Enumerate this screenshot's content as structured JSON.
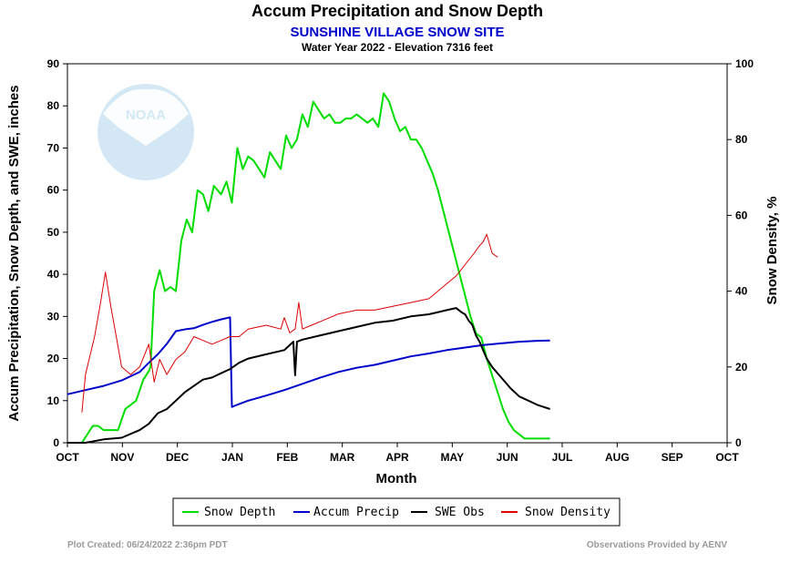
{
  "footer": {
    "left": "Plot Created: 06/24/2022 2:36pm PDT",
    "right": "Observations Provided by AENV"
  },
  "logo": {
    "text": "NOAA"
  },
  "chart_data": {
    "type": "line",
    "title": "Accum Precipitation and Snow Depth",
    "subtitle": "SUNSHINE VILLAGE SNOW SITE",
    "subtitle2": "Water Year 2022 -  Elevation 7316 feet",
    "xlabel": "Month",
    "ylabel": "Accum Precipitation, Snow Depth, and SWE, inches",
    "y2label": "Snow Density, %",
    "categories": [
      "OCT",
      "NOV",
      "DEC",
      "JAN",
      "FEB",
      "MAR",
      "APR",
      "MAY",
      "JUN",
      "JUL",
      "AUG",
      "SEP",
      "OCT"
    ],
    "xlim": [
      0,
      365
    ],
    "ylim": [
      0,
      90
    ],
    "yticks": [
      0,
      10,
      20,
      30,
      40,
      50,
      60,
      70,
      80,
      90
    ],
    "y2lim": [
      0,
      100
    ],
    "y2ticks": [
      0,
      20,
      40,
      60,
      80,
      100
    ],
    "series": [
      {
        "name": "Snow Depth",
        "color": "#00dd00",
        "axis": "left",
        "x": [
          0,
          8,
          14,
          17,
          20,
          24,
          28,
          32,
          38,
          42,
          45,
          46,
          48,
          51,
          54,
          57,
          60,
          63,
          66,
          69,
          72,
          75,
          78,
          81,
          85,
          88,
          91,
          94,
          97,
          100,
          103,
          106,
          109,
          112,
          115,
          118,
          121,
          124,
          127,
          130,
          133,
          136,
          139,
          142,
          145,
          148,
          151,
          154,
          157,
          160,
          163,
          166,
          169,
          172,
          175,
          178,
          181,
          184,
          187,
          190,
          193,
          196,
          199,
          202,
          205,
          208,
          211,
          214,
          217,
          220,
          223,
          226,
          229,
          232,
          235,
          238,
          241,
          244,
          247,
          250,
          253,
          256,
          259,
          262,
          265,
          267
        ],
        "values": [
          0,
          0,
          4,
          4,
          3,
          3,
          3,
          8,
          10,
          15,
          17,
          18,
          36,
          41,
          36,
          37,
          36,
          48,
          53,
          50,
          60,
          59,
          55,
          61,
          59,
          62,
          57,
          70,
          65,
          68,
          67,
          65,
          63,
          69,
          67,
          65,
          73,
          70,
          72,
          78,
          75,
          81,
          79,
          77,
          78,
          76,
          76,
          77,
          77,
          78,
          77,
          76,
          77,
          75,
          83,
          81,
          77,
          74,
          75,
          72,
          72,
          70,
          67,
          64,
          60,
          55,
          50,
          45,
          40,
          35,
          30,
          26,
          25,
          20,
          16,
          12,
          8,
          5,
          3,
          2,
          1,
          1,
          1,
          1,
          1,
          1
        ]
      },
      {
        "name": "Accum Precip",
        "color": "#0000cc",
        "axis": "left",
        "x": [
          0,
          10,
          20,
          30,
          40,
          45,
          50,
          55,
          60,
          66,
          70,
          75,
          80,
          85,
          90,
          91,
          95,
          100,
          110,
          120,
          130,
          140,
          150,
          160,
          170,
          180,
          190,
          200,
          210,
          220,
          230,
          240,
          250,
          260,
          267
        ],
        "values": [
          11.5,
          12.5,
          13.5,
          14.8,
          16.8,
          19.0,
          21.0,
          23.5,
          26.5,
          27.0,
          27.2,
          28.0,
          28.7,
          29.3,
          29.8,
          8.5,
          9.2,
          10.0,
          11.2,
          12.5,
          14.0,
          15.5,
          16.8,
          17.8,
          18.5,
          19.5,
          20.5,
          21.2,
          22.0,
          22.6,
          23.2,
          23.6,
          24.0,
          24.2,
          24.3
        ]
      },
      {
        "name": "SWE Obs",
        "color": "#000000",
        "axis": "left",
        "x": [
          0,
          10,
          20,
          30,
          40,
          45,
          50,
          55,
          60,
          65,
          70,
          75,
          80,
          85,
          90,
          95,
          100,
          110,
          120,
          125,
          126,
          127,
          130,
          140,
          150,
          160,
          170,
          180,
          190,
          200,
          210,
          215,
          218,
          220,
          222,
          224,
          226,
          228,
          230,
          232,
          235,
          240,
          245,
          250,
          260,
          267
        ],
        "values": [
          0,
          0,
          0.8,
          1.2,
          3.0,
          4.5,
          7.0,
          8.0,
          10.0,
          12.0,
          13.5,
          15.0,
          15.5,
          16.5,
          17.5,
          19.0,
          20.0,
          21.0,
          22.0,
          24.0,
          16.0,
          24.0,
          24.5,
          25.5,
          26.5,
          27.5,
          28.5,
          29.0,
          30.0,
          30.5,
          31.5,
          32.0,
          31.0,
          30.5,
          29.0,
          28.0,
          25.5,
          24.0,
          22.0,
          20.0,
          18.0,
          15.5,
          13.0,
          11.0,
          9.0,
          8.0
        ]
      },
      {
        "name": "Snow Density",
        "color": "#dd0000",
        "axis": "right",
        "x": [
          8,
          10,
          15,
          18,
          21,
          24,
          27,
          30,
          35,
          40,
          45,
          48,
          51,
          55,
          60,
          65,
          70,
          75,
          80,
          85,
          90,
          95,
          100,
          110,
          118,
          120,
          123,
          126,
          128,
          130,
          135,
          140,
          150,
          160,
          170,
          180,
          190,
          200,
          205,
          210,
          215,
          220,
          225,
          228,
          230,
          232,
          235,
          238
        ],
        "values": [
          8,
          18,
          28,
          36,
          45,
          36,
          28,
          20,
          18,
          20,
          26,
          16,
          22,
          18,
          22,
          24,
          28,
          27,
          26,
          27,
          28,
          28,
          30,
          31,
          30,
          33,
          29,
          30,
          37,
          30,
          31,
          32,
          34,
          35,
          35,
          36,
          37,
          38,
          40,
          42,
          44,
          47,
          50,
          52,
          53,
          55,
          50,
          49
        ]
      }
    ]
  }
}
